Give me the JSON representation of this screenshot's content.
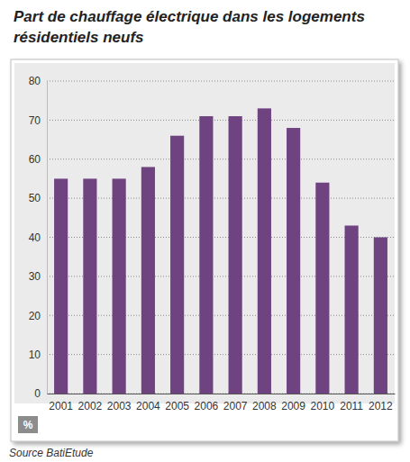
{
  "chart_data": {
    "type": "bar",
    "title": "Part de chauffage électrique dans les logements résidentiels neufs",
    "y_label": "%",
    "source": "Source BatiEtude",
    "categories": [
      "2001",
      "2002",
      "2003",
      "2004",
      "2005",
      "2006",
      "2007",
      "2008",
      "2009",
      "2010",
      "2011",
      "2012"
    ],
    "values": [
      55,
      55,
      55,
      58,
      66,
      71,
      71,
      73,
      68,
      54,
      43,
      40
    ],
    "color": "#6f4280",
    "ylim": [
      0,
      80
    ],
    "yticks": [
      0,
      10,
      20,
      30,
      40,
      50,
      60,
      70,
      80
    ],
    "grid": true
  }
}
